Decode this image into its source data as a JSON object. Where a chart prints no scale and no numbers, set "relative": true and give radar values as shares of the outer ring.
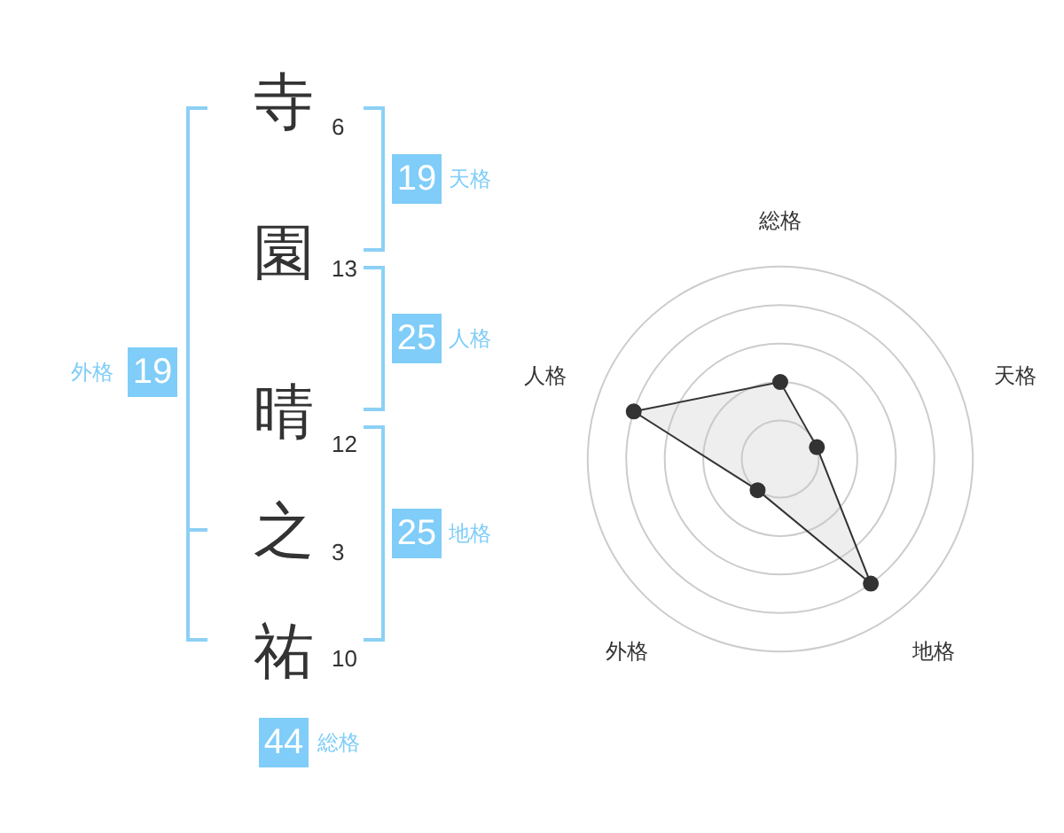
{
  "chart_data": [
    {
      "type": "other",
      "categories": [
        "寺",
        "園",
        "晴",
        "之",
        "祐"
      ],
      "annotations": [
        "6",
        "13",
        "12",
        "3",
        "10",
        "19",
        "天格",
        "25",
        "人格",
        "25",
        "地格",
        "19",
        "外格",
        "44",
        "総格"
      ]
    },
    {
      "type": "radar",
      "relative": true,
      "categories": [
        "総格",
        "天格",
        "地格",
        "外格",
        "人格"
      ],
      "series": [
        {
          "color": "#333333",
          "values": [
            0.4,
            0.2,
            0.8,
            0.2,
            0.8
          ]
        }
      ]
    }
  ]
}
